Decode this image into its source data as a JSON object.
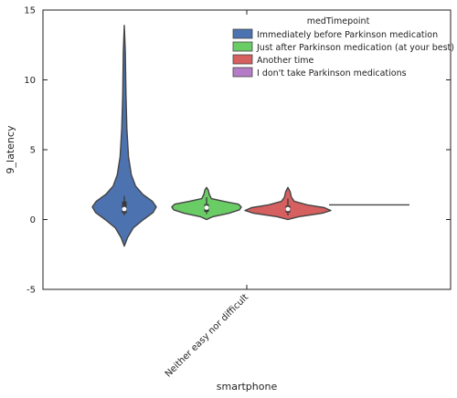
{
  "chart_data": {
    "type": "violin",
    "xlabel": "smartphone",
    "ylabel": "9_latency",
    "ylim": [
      -5,
      15
    ],
    "yticks": [
      "-5",
      "0",
      "5",
      "10",
      "15"
    ],
    "categories": [
      "Neither easy nor difficult"
    ],
    "legend": {
      "title": "medTimepoint",
      "placement": "top-right",
      "entries": [
        {
          "label": "Immediately before Parkinson medication",
          "color": "#4c72b0"
        },
        {
          "label": "Just after Parkinson medication (at your best)",
          "color": "#6acc65"
        },
        {
          "label": "Another time",
          "color": "#d65f5f"
        },
        {
          "label": "I don't take Parkinson medications",
          "color": "#b47cc7"
        }
      ]
    },
    "series": [
      {
        "name": "Immediately before Parkinson medication",
        "color": "#4c72b0",
        "median": 0.75,
        "q1": 0.45,
        "q3": 1.3,
        "whisker": [
          0.3,
          1.7
        ],
        "profile": [
          [
            -1.9,
            0.0
          ],
          [
            -1.3,
            0.1
          ],
          [
            -0.6,
            0.28
          ],
          [
            0.0,
            0.6
          ],
          [
            0.5,
            0.9
          ],
          [
            0.9,
            1.0
          ],
          [
            1.3,
            0.88
          ],
          [
            1.8,
            0.58
          ],
          [
            2.4,
            0.35
          ],
          [
            3.2,
            0.22
          ],
          [
            4.5,
            0.13
          ],
          [
            6.5,
            0.08
          ],
          [
            9.0,
            0.05
          ],
          [
            12.0,
            0.03
          ],
          [
            13.9,
            0.0
          ]
        ]
      },
      {
        "name": "Just after Parkinson medication (at your best)",
        "color": "#6acc65",
        "median": 0.85,
        "q1": 0.55,
        "q3": 1.1,
        "whisker": [
          0.4,
          1.6
        ],
        "profile": [
          [
            0.0,
            0.0
          ],
          [
            0.2,
            0.18
          ],
          [
            0.45,
            0.65
          ],
          [
            0.7,
            0.95
          ],
          [
            0.9,
            1.0
          ],
          [
            1.1,
            0.92
          ],
          [
            1.3,
            0.5
          ],
          [
            1.5,
            0.14
          ],
          [
            1.8,
            0.08
          ],
          [
            2.1,
            0.05
          ],
          [
            2.3,
            0.0
          ]
        ]
      },
      {
        "name": "Another time",
        "color": "#d65f5f",
        "median": 0.75,
        "q1": 0.5,
        "q3": 1.0,
        "whisker": [
          0.3,
          1.5
        ],
        "profile": [
          [
            0.0,
            0.0
          ],
          [
            0.2,
            0.25
          ],
          [
            0.45,
            0.8
          ],
          [
            0.65,
            1.0
          ],
          [
            0.85,
            0.85
          ],
          [
            1.05,
            0.45
          ],
          [
            1.3,
            0.15
          ],
          [
            1.6,
            0.08
          ],
          [
            2.0,
            0.05
          ],
          [
            2.3,
            0.0
          ]
        ]
      },
      {
        "name": "I don't take Parkinson medications",
        "color": "#b47cc7",
        "flat_value": 1.05
      }
    ]
  }
}
